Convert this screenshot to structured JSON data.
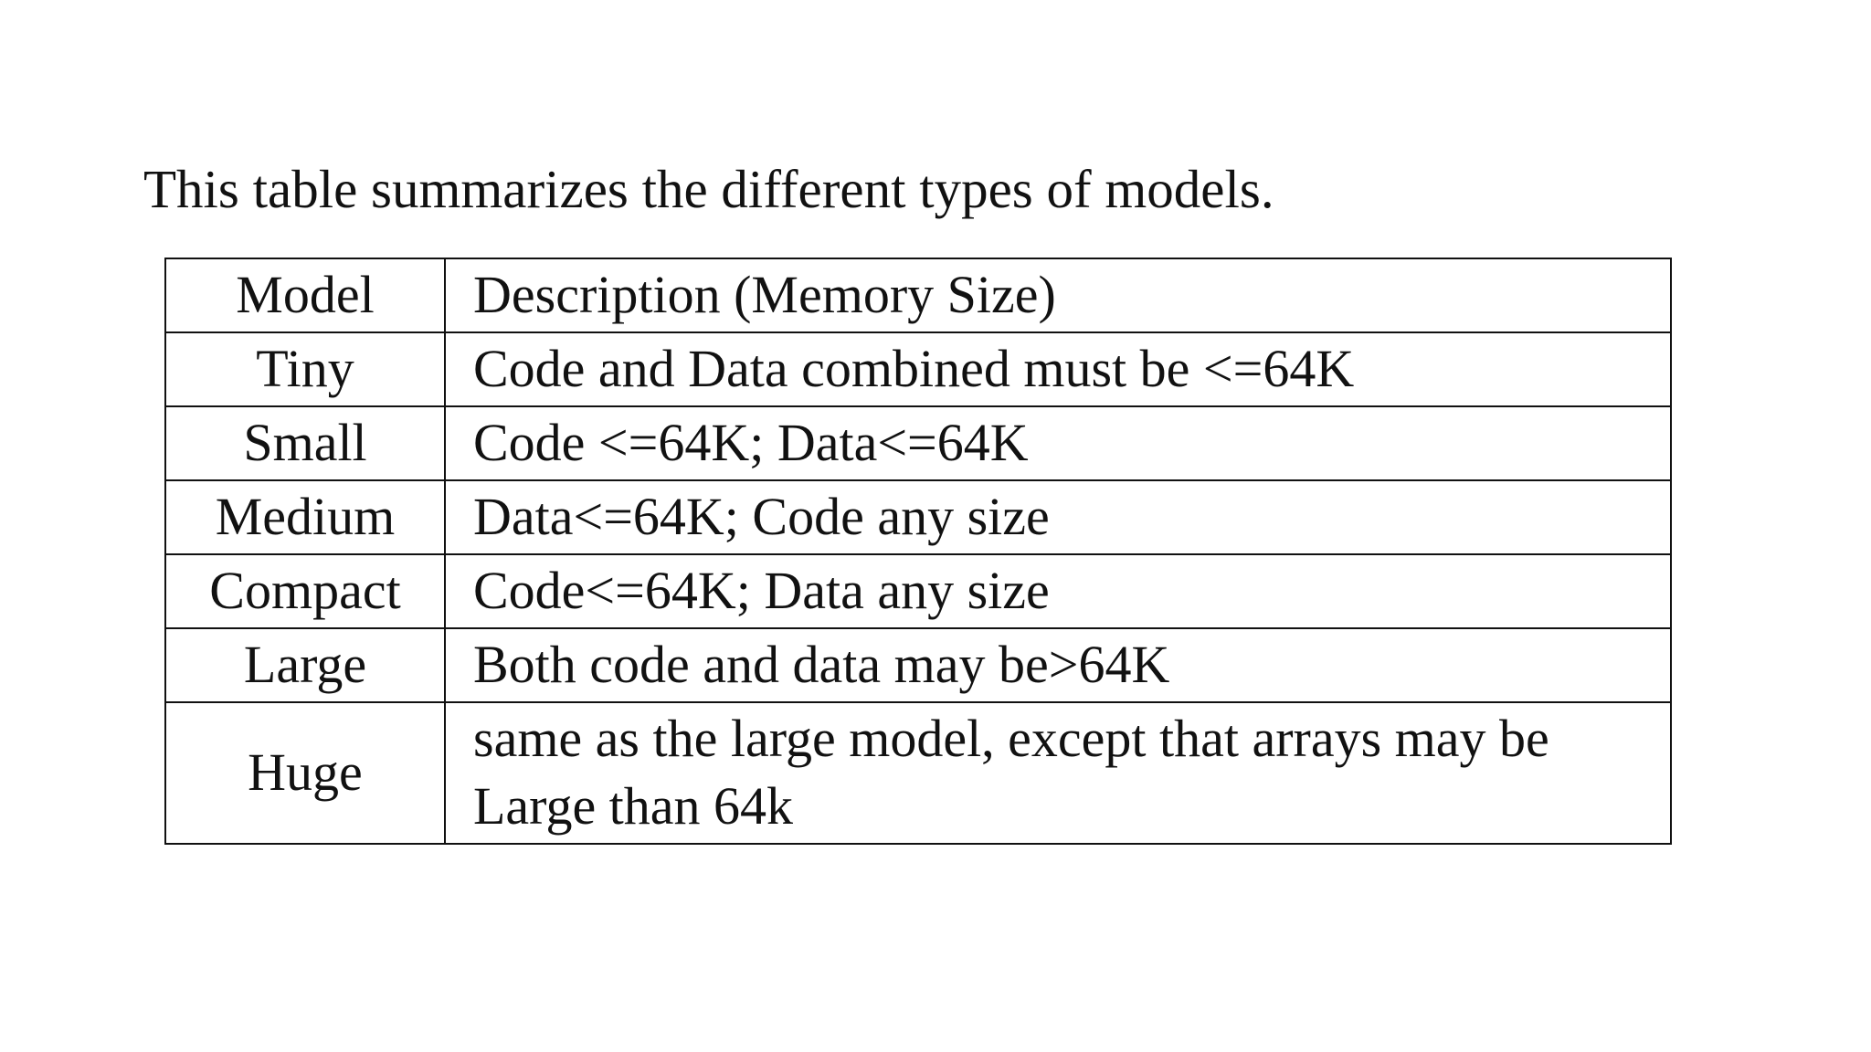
{
  "intro": "This table summarizes the different types of models.",
  "table": {
    "header": [
      "Model",
      "Description (Memory Size)"
    ],
    "rows": [
      [
        "Tiny",
        "Code and Data combined must be <=64K"
      ],
      [
        "Small",
        "Code <=64K; Data<=64K"
      ],
      [
        "Medium",
        "Data<=64K; Code any size"
      ],
      [
        "Compact",
        "Code<=64K; Data any size"
      ],
      [
        "Large",
        "Both code and data may be>64K"
      ],
      [
        "Huge",
        "same as the large model, except that arrays may be Large than 64k"
      ]
    ]
  }
}
